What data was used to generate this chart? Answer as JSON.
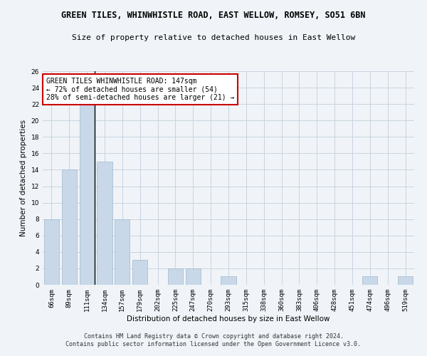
{
  "title": "GREEN TILES, WHINWHISTLE ROAD, EAST WELLOW, ROMSEY, SO51 6BN",
  "subtitle": "Size of property relative to detached houses in East Wellow",
  "xlabel": "Distribution of detached houses by size in East Wellow",
  "ylabel": "Number of detached properties",
  "categories": [
    "66sqm",
    "89sqm",
    "111sqm",
    "134sqm",
    "157sqm",
    "179sqm",
    "202sqm",
    "225sqm",
    "247sqm",
    "270sqm",
    "293sqm",
    "315sqm",
    "338sqm",
    "360sqm",
    "383sqm",
    "406sqm",
    "428sqm",
    "451sqm",
    "474sqm",
    "496sqm",
    "519sqm"
  ],
  "values": [
    8,
    14,
    22,
    15,
    8,
    3,
    0,
    2,
    2,
    0,
    1,
    0,
    0,
    0,
    0,
    0,
    0,
    0,
    1,
    0,
    1
  ],
  "bar_color": "#c8d8e8",
  "bar_edge_color": "#a0b8cc",
  "highlight_bar_color": "#a0b8d8",
  "highlight_index": 2,
  "highlight_line_color": "#000000",
  "annotation_text": "GREEN TILES WHINWHISTLE ROAD: 147sqm\n← 72% of detached houses are smaller (54)\n28% of semi-detached houses are larger (21) →",
  "annotation_box_color": "#ffffff",
  "annotation_box_edge_color": "#cc0000",
  "ylim": [
    0,
    26
  ],
  "yticks": [
    0,
    2,
    4,
    6,
    8,
    10,
    12,
    14,
    16,
    18,
    20,
    22,
    24,
    26
  ],
  "footer": "Contains HM Land Registry data © Crown copyright and database right 2024.\nContains public sector information licensed under the Open Government Licence v3.0.",
  "bg_color": "#f0f4f8",
  "grid_color": "#c8d4e0",
  "title_fontsize": 8.5,
  "subtitle_fontsize": 8,
  "axis_label_fontsize": 7.5,
  "tick_fontsize": 6.5,
  "annotation_fontsize": 7,
  "footer_fontsize": 6
}
